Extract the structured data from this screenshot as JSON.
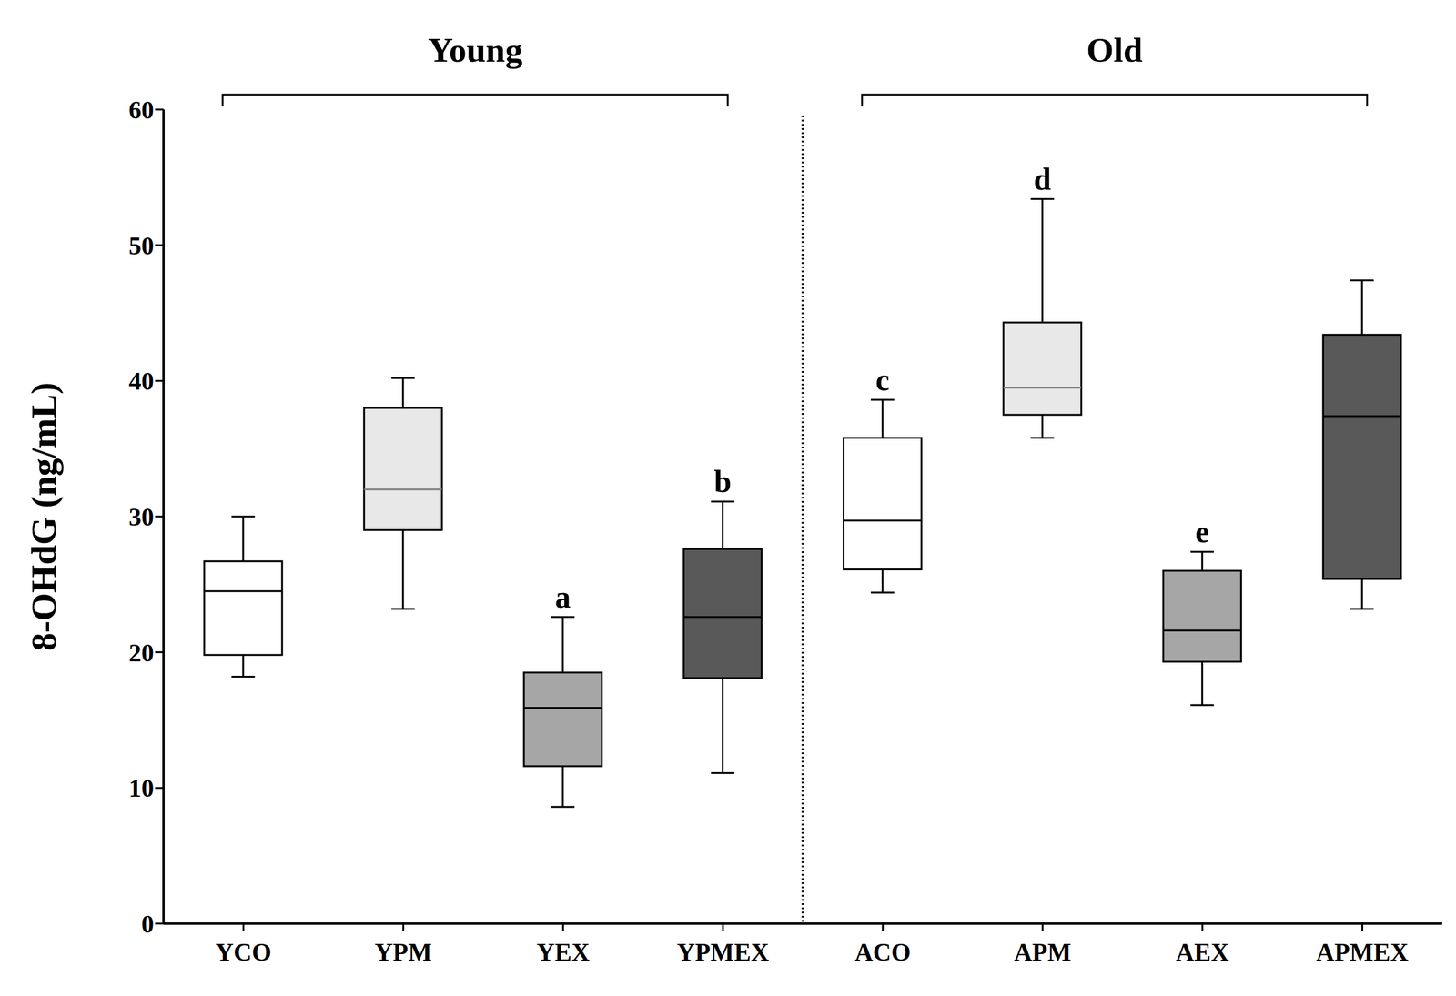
{
  "chart_data": {
    "type": "box",
    "y_label": "8-OHdG (ng/mL)",
    "categories": [
      "YCO",
      "YPM",
      "YEX",
      "YPMEX",
      "ACO",
      "APM",
      "AEX",
      "APMEX"
    ],
    "groups": [
      {
        "label": "Young",
        "categories": [
          "YCO",
          "YPM",
          "YEX",
          "YPMEX"
        ]
      },
      {
        "label": "Old",
        "categories": [
          "ACO",
          "APM",
          "AEX",
          "APMEX"
        ]
      }
    ],
    "ylim": [
      0,
      60
    ],
    "yticks": [
      0,
      10,
      20,
      30,
      40,
      50,
      60
    ],
    "min": [
      18.2,
      23.2,
      8.6,
      11.1,
      24.4,
      35.8,
      16.1,
      23.2
    ],
    "q1": [
      19.8,
      29.0,
      11.6,
      18.1,
      26.1,
      37.5,
      19.3,
      25.4
    ],
    "median": [
      24.5,
      32.0,
      15.9,
      22.6,
      29.7,
      39.5,
      21.6,
      37.4
    ],
    "q3": [
      26.7,
      38.0,
      18.5,
      27.6,
      35.8,
      44.3,
      26.0,
      43.4
    ],
    "max": [
      30.0,
      40.2,
      22.6,
      31.1,
      38.6,
      53.4,
      27.4,
      47.4
    ],
    "annotations": [
      null,
      null,
      "a",
      "b",
      "c",
      "d",
      "e",
      null
    ],
    "colors": [
      "#ffffff",
      "#e8e8e8",
      "#a6a6a6",
      "#595959",
      "#ffffff",
      "#e8e8e8",
      "#a6a6a6",
      "#595959"
    ]
  }
}
